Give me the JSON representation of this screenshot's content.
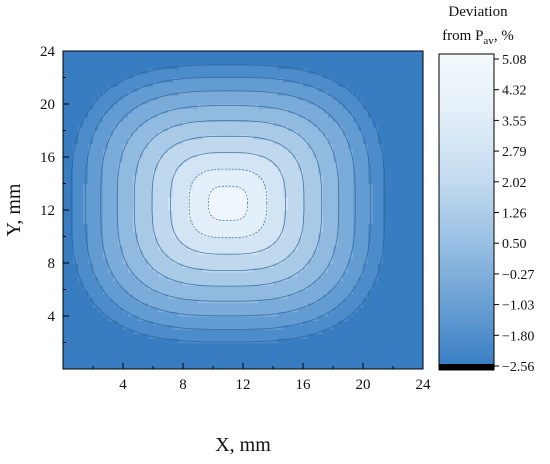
{
  "chart_data": {
    "type": "heatmap",
    "subtype": "filled-contour",
    "xlabel": "X, mm",
    "ylabel": "Y, mm",
    "xlim": [
      0,
      24
    ],
    "ylim": [
      0,
      24
    ],
    "xticks": [
      4,
      8,
      12,
      16,
      20,
      24
    ],
    "xtick_labels": [
      "4",
      "8",
      "12",
      "16",
      "20",
      "24"
    ],
    "yticks": [
      4,
      8,
      12,
      16,
      20,
      24
    ],
    "ytick_labels": [
      "4",
      "8",
      "12",
      "16",
      "20",
      "24"
    ],
    "peak": {
      "x": 11.0,
      "y": 12.5,
      "value": 5.08
    },
    "contour_levels": [
      -2.56,
      -1.8,
      -1.03,
      -0.27,
      0.5,
      1.26,
      2.02,
      2.79,
      3.55,
      4.32,
      5.08
    ],
    "colorbar": {
      "title_line1": "Deviation",
      "title_line2_prefix": "from P",
      "title_subscript": "av",
      "title_line2_suffix": ", %",
      "min": -2.56,
      "max": 5.08,
      "tick_labels": [
        "5.08",
        "4.32",
        "3.55",
        "2.79",
        "2.02",
        "1.26",
        "0.50",
        "−0.27",
        "−1.03",
        "−1.80",
        "−2.56"
      ],
      "colors": [
        "#000000",
        "#3a7fc4",
        "#6ba1d4",
        "#9ac1e3",
        "#c4dcef",
        "#e2eef8",
        "#f4fafd"
      ]
    },
    "colormap_stops": [
      "#2f75bd",
      "#4a8bcb",
      "#6ba1d4",
      "#8cb7de",
      "#aecde8",
      "#cde1f2",
      "#e4f0f9",
      "#f7fbfe"
    ],
    "grid": false,
    "legend": "colorbar-right"
  }
}
